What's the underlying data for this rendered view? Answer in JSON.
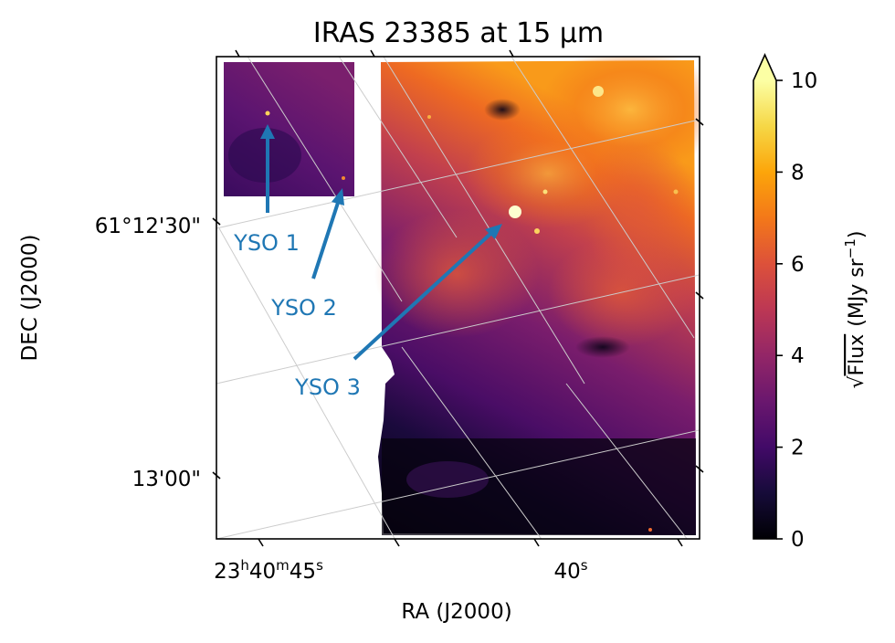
{
  "chart_data": {
    "type": "heatmap",
    "title": "IRAS 23385 at 15 μm",
    "xlabel": "RA (J2000)",
    "ylabel": "DEC (J2000)",
    "x_ticks": [
      {
        "label_h": "23",
        "label_m": "40",
        "label_s": "45"
      },
      {
        "label_s": "40"
      }
    ],
    "y_ticks": [
      "61°12'30\"",
      "13'00\""
    ],
    "colorbar": {
      "label_sqrt": "Flux",
      "label_units": "(MJy sr",
      "label_exp": "−1",
      "label_close": ")",
      "min": 0,
      "max": 10,
      "ticks": [
        "0",
        "2",
        "4",
        "6",
        "8",
        "10"
      ],
      "extend": "max",
      "colormap": "inferno"
    },
    "annotations": [
      {
        "text": "YSO 1",
        "color": "#1f77b4"
      },
      {
        "text": "YSO 2",
        "color": "#1f77b4"
      },
      {
        "text": "YSO 3",
        "color": "#1f77b4"
      }
    ],
    "grid": true,
    "grid_color": "#cccccc",
    "annotation_color": "#1f77b4"
  }
}
